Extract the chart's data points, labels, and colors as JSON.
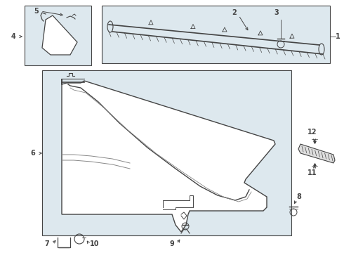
{
  "bg_color": "#ffffff",
  "line_color": "#444444",
  "panel_bg": "#dde8ee",
  "box_bg": "#dde8ee",
  "strip_bg": "#cccccc",
  "fig_w": 4.9,
  "fig_h": 3.6,
  "dpi": 100
}
